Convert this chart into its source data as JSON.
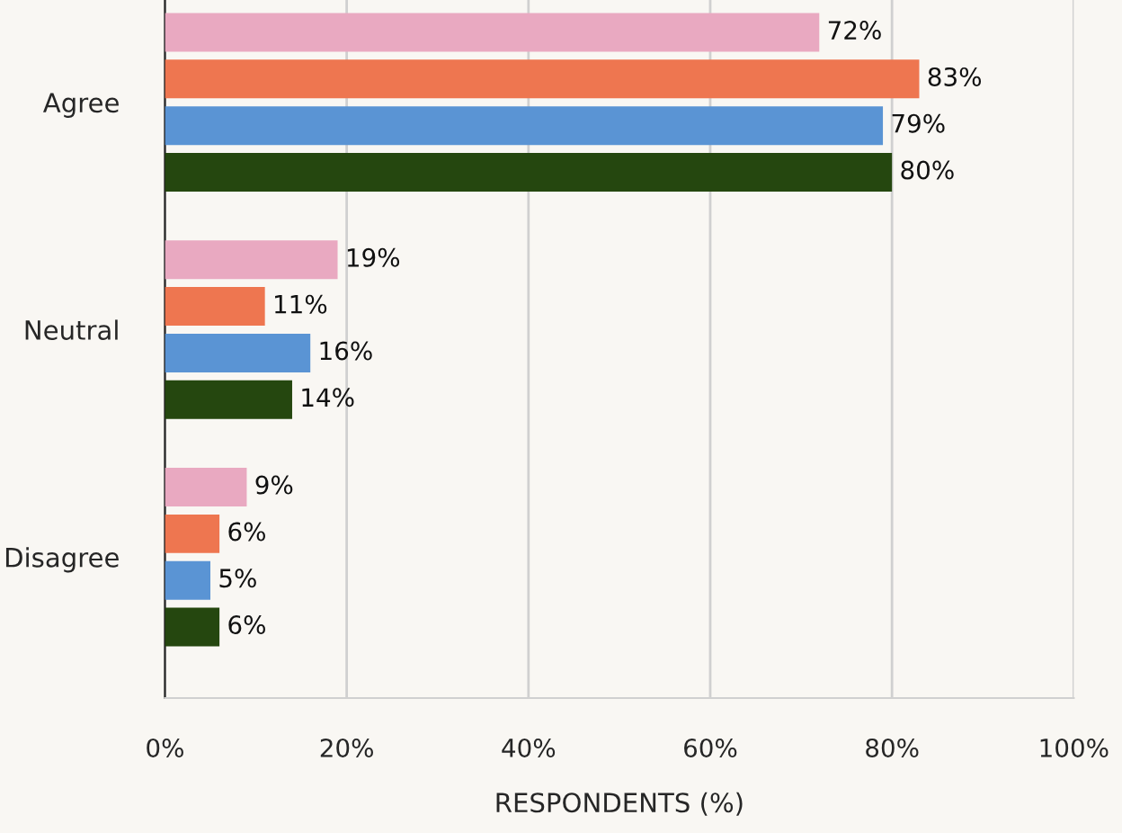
{
  "chart_data": {
    "type": "bar",
    "orientation": "horizontal",
    "xlabel": "RESPONDENTS (%)",
    "categories": [
      "Agree",
      "Neutral",
      "Disagree"
    ],
    "series": [
      {
        "color": "#e9a9c1",
        "values": [
          72,
          19,
          9
        ],
        "value_labels": [
          "72%",
          "19%",
          "9%"
        ]
      },
      {
        "color": "#ee7650",
        "values": [
          83,
          11,
          6
        ],
        "value_labels": [
          "83%",
          "11%",
          "6%"
        ]
      },
      {
        "color": "#5a94d4",
        "values": [
          79,
          16,
          5
        ],
        "value_labels": [
          "79%",
          "16%",
          "5%"
        ]
      },
      {
        "color": "#25470f",
        "values": [
          80,
          14,
          6
        ],
        "value_labels": [
          "80%",
          "14%",
          "6%"
        ]
      }
    ],
    "xlim": [
      0,
      100
    ],
    "xticks": [
      {
        "value": 0,
        "label": "0%"
      },
      {
        "value": 20,
        "label": "20%"
      },
      {
        "value": 40,
        "label": "40%"
      },
      {
        "value": 60,
        "label": "60%"
      },
      {
        "value": 80,
        "label": "80%"
      },
      {
        "value": 100,
        "label": "100%"
      }
    ],
    "grid": "x"
  }
}
